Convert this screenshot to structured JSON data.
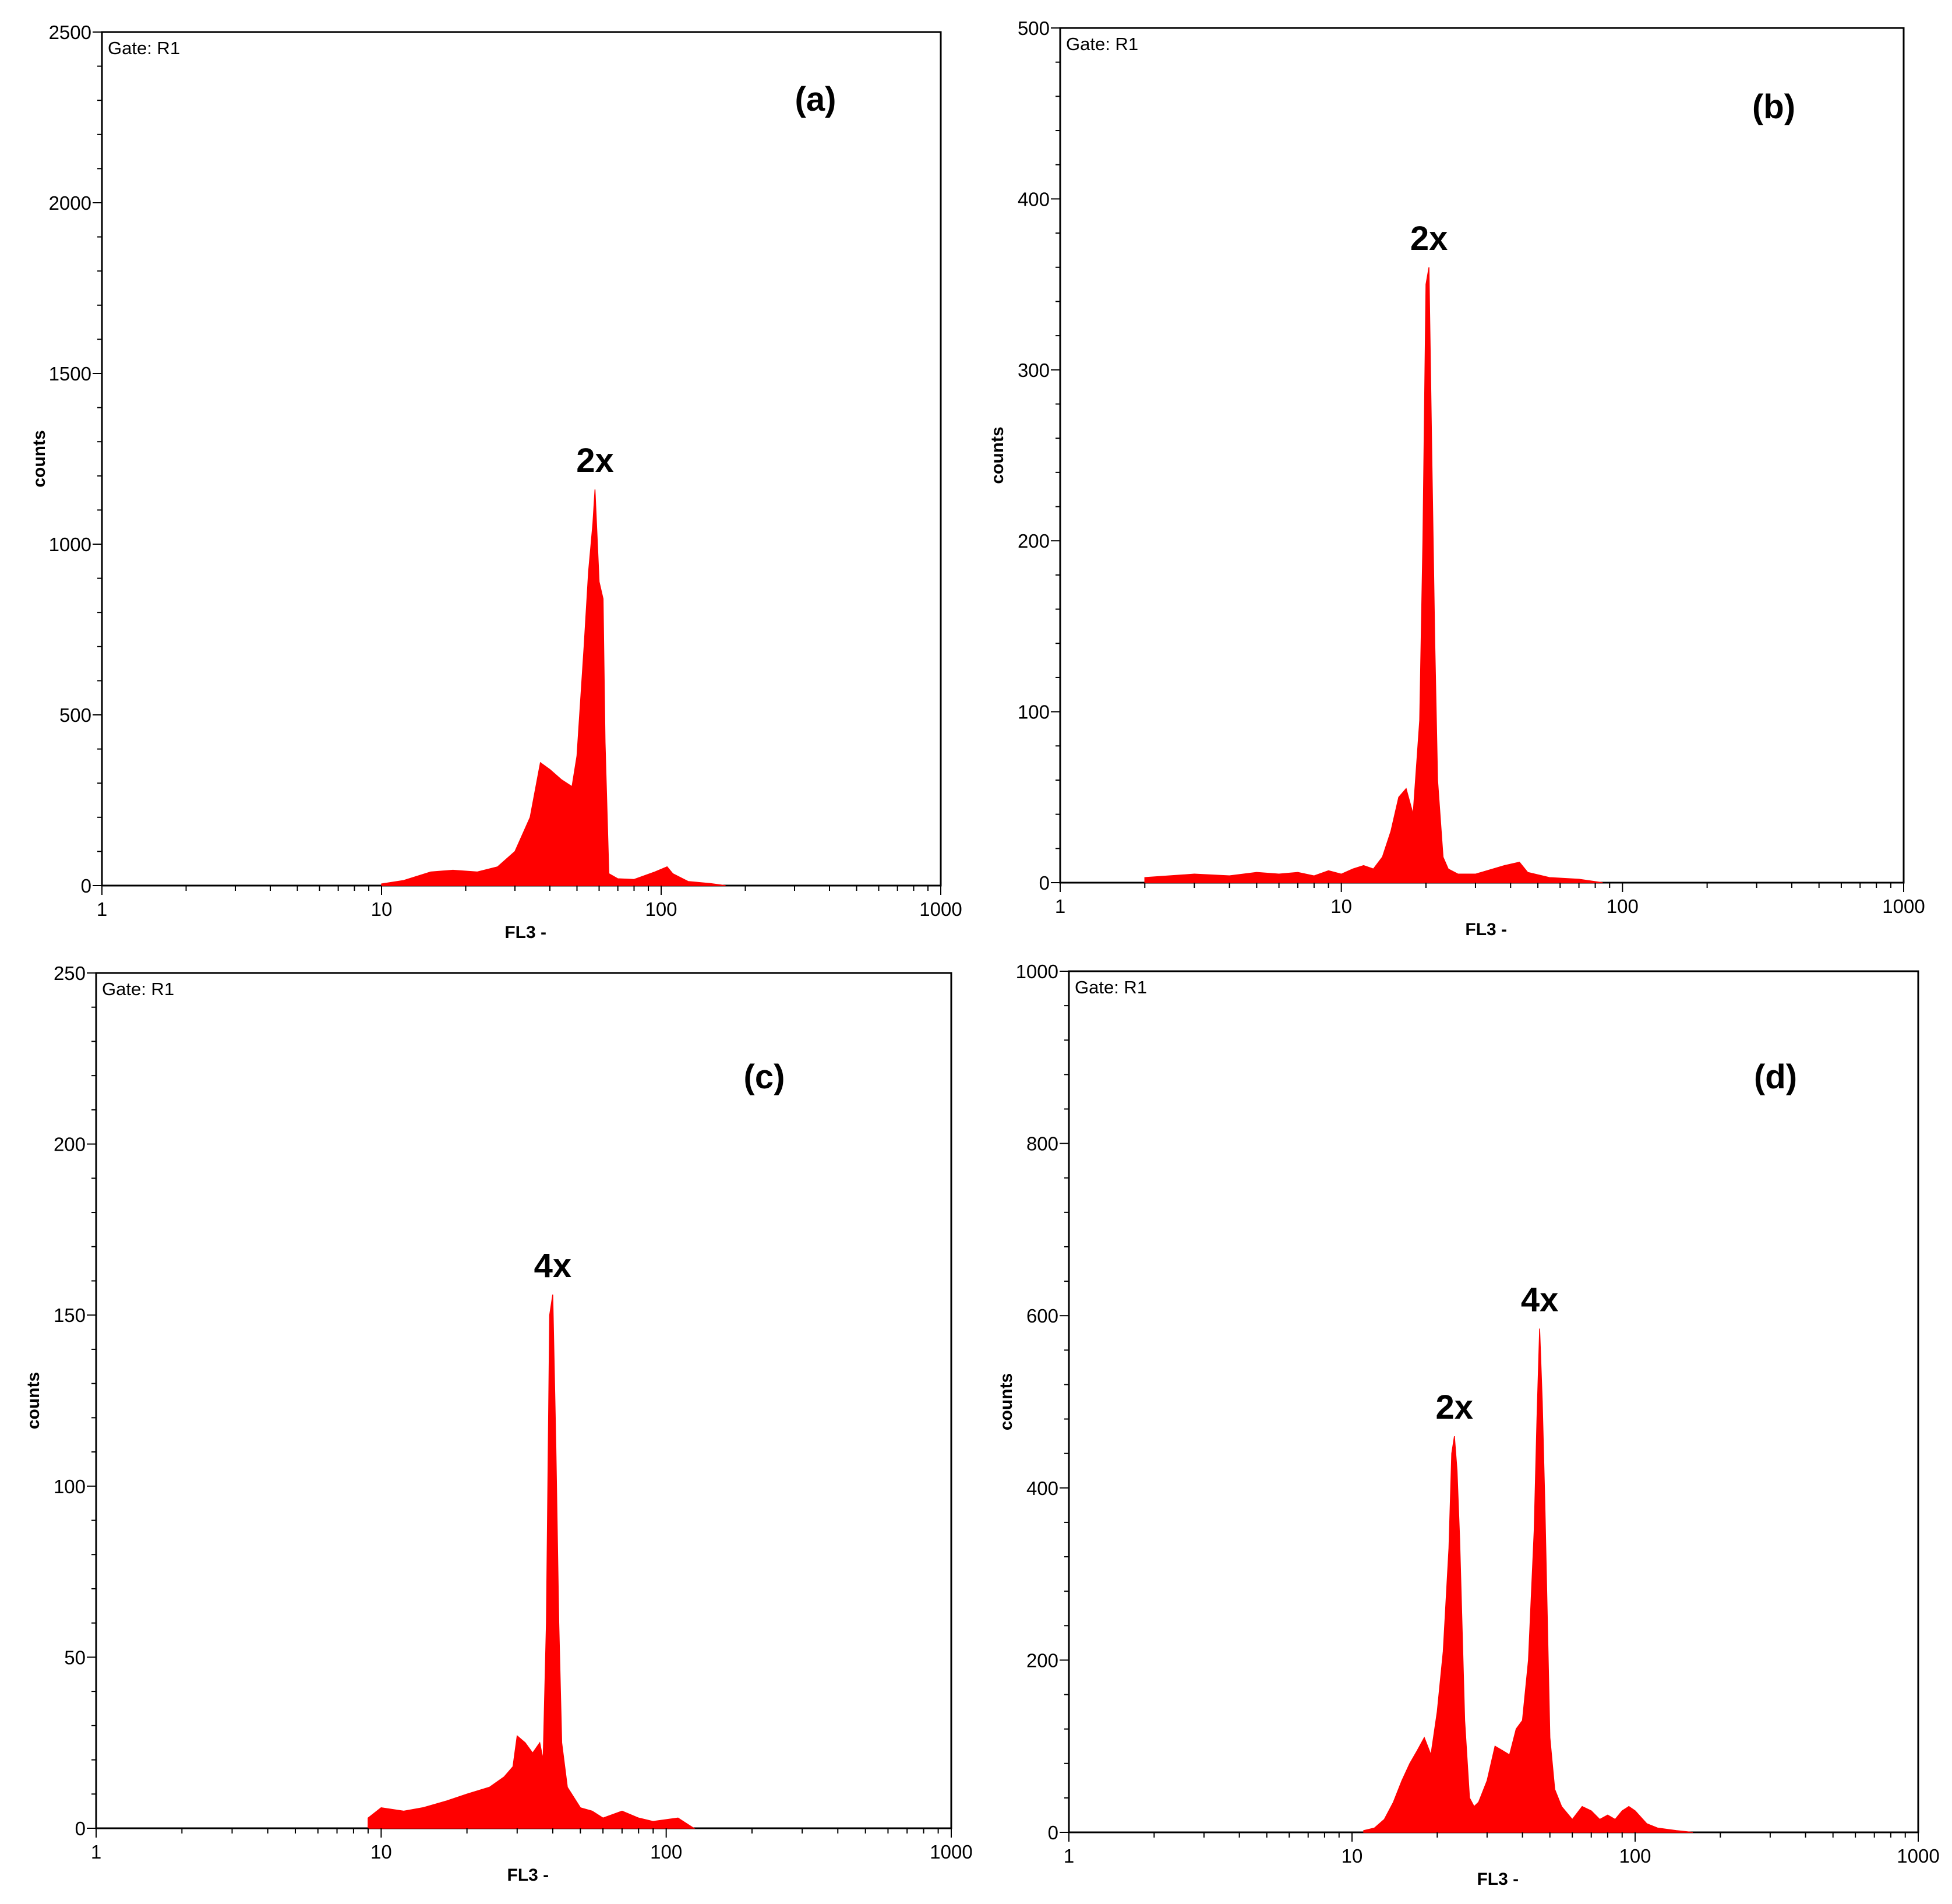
{
  "chart_data": [
    {
      "type": "histogram",
      "panel_label": "(a)",
      "gate_label": "Gate: R1",
      "xlabel": "FL3 -",
      "ylabel": "counts",
      "x_scale": "log",
      "xlim": [
        1,
        1000
      ],
      "ylim": [
        0,
        2500
      ],
      "x_ticks": [
        "1",
        "10",
        "100",
        "1000"
      ],
      "y_ticks": [
        "0",
        "500",
        "1000",
        "1500",
        "2000",
        "2500"
      ],
      "color": "#ff0000",
      "peaks": [
        {
          "label": "2x",
          "x": 58,
          "y": 1160
        }
      ],
      "histogram": {
        "x": [
          10,
          12,
          15,
          18,
          22,
          26,
          30,
          34,
          37,
          40,
          44,
          48,
          50,
          53,
          55,
          57,
          58,
          60,
          62,
          63,
          65,
          70,
          80,
          95,
          105,
          110,
          125,
          150,
          170
        ],
        "y": [
          5,
          15,
          40,
          45,
          40,
          55,
          100,
          200,
          360,
          340,
          310,
          290,
          380,
          700,
          920,
          1060,
          1160,
          890,
          840,
          420,
          35,
          20,
          18,
          40,
          55,
          35,
          12,
          6,
          0
        ]
      }
    },
    {
      "type": "histogram",
      "panel_label": "(b)",
      "gate_label": "Gate: R1",
      "xlabel": "FL3 -",
      "ylabel": "counts",
      "x_scale": "log",
      "xlim": [
        1,
        1000
      ],
      "ylim": [
        0,
        500
      ],
      "x_ticks": [
        "1",
        "10",
        "100",
        "1000"
      ],
      "y_ticks": [
        "0",
        "100",
        "200",
        "300",
        "400",
        "500"
      ],
      "color": "#ff0000",
      "peaks": [
        {
          "label": "2x",
          "x": 20.5,
          "y": 360
        }
      ],
      "histogram": {
        "x": [
          2,
          3,
          4,
          5,
          6,
          7,
          8,
          9,
          10,
          11,
          12,
          13,
          14,
          15,
          16,
          17,
          18,
          19,
          19.5,
          20,
          20.5,
          21,
          21.5,
          22,
          23,
          24,
          26,
          30,
          38,
          43,
          46,
          55,
          70,
          85
        ],
        "y": [
          3,
          5,
          4,
          6,
          5,
          6,
          4,
          7,
          5,
          8,
          10,
          8,
          15,
          30,
          50,
          55,
          40,
          95,
          200,
          350,
          360,
          245,
          140,
          60,
          15,
          8,
          5,
          5,
          10,
          12,
          6,
          3,
          2,
          0
        ]
      }
    },
    {
      "type": "histogram",
      "panel_label": "(c)",
      "gate_label": "Gate: R1",
      "xlabel": "FL3 -",
      "ylabel": "counts",
      "x_scale": "log",
      "xlim": [
        1,
        1000
      ],
      "ylim": [
        0,
        250
      ],
      "x_ticks": [
        "1",
        "10",
        "100",
        "1000"
      ],
      "y_ticks": [
        "0",
        "50",
        "100",
        "150",
        "200",
        "250"
      ],
      "color": "#ff0000",
      "peaks": [
        {
          "label": "4x",
          "x": 40,
          "y": 156
        }
      ],
      "histogram": {
        "x": [
          9,
          10,
          12,
          14,
          17,
          20,
          24,
          27,
          29,
          30,
          32,
          34,
          36,
          37,
          38,
          39,
          40,
          41,
          42,
          43,
          45,
          50,
          55,
          60,
          70,
          80,
          90,
          110,
          125
        ],
        "y": [
          3,
          6,
          5,
          6,
          8,
          10,
          12,
          15,
          18,
          27,
          25,
          22,
          25,
          20,
          60,
          150,
          156,
          112,
          60,
          25,
          12,
          6,
          5,
          3,
          5,
          3,
          2,
          3,
          0
        ]
      }
    },
    {
      "type": "histogram",
      "panel_label": "(d)",
      "gate_label": "Gate: R1",
      "xlabel": "FL3 -",
      "ylabel": "counts",
      "x_scale": "log",
      "xlim": [
        1,
        1000
      ],
      "ylim": [
        0,
        1000
      ],
      "x_ticks": [
        "1",
        "10",
        "100",
        "1000"
      ],
      "y_ticks": [
        "0",
        "200",
        "400",
        "600",
        "800",
        "1000"
      ],
      "color": "#ff0000",
      "peaks": [
        {
          "label": "2x",
          "x": 23,
          "y": 460
        },
        {
          "label": "4x",
          "x": 46,
          "y": 585
        }
      ],
      "histogram": {
        "x": [
          11,
          12,
          13,
          14,
          15,
          16,
          17,
          18,
          19,
          20,
          21,
          22,
          22.5,
          23,
          23.5,
          24,
          25,
          26,
          27,
          28,
          30,
          32,
          34,
          36,
          38,
          40,
          42,
          44,
          45,
          46,
          47,
          48,
          50,
          52,
          55,
          60,
          65,
          70,
          75,
          80,
          85,
          90,
          95,
          100,
          110,
          120,
          140,
          160
        ],
        "y": [
          2,
          5,
          15,
          35,
          60,
          80,
          95,
          110,
          90,
          140,
          210,
          330,
          440,
          460,
          420,
          340,
          130,
          40,
          30,
          35,
          60,
          100,
          95,
          90,
          120,
          130,
          200,
          350,
          480,
          585,
          500,
          380,
          110,
          50,
          30,
          15,
          30,
          25,
          15,
          20,
          15,
          25,
          30,
          25,
          10,
          5,
          2,
          0
        ]
      }
    }
  ]
}
